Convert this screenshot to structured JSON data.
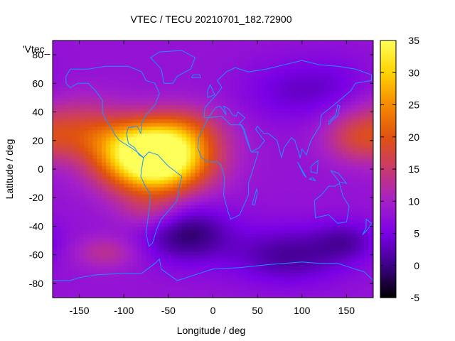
{
  "chart_data": {
    "type": "heatmap",
    "title": "VTEC / TECU 20210701_182.72900",
    "xlabel": "Longitude / deg",
    "ylabel": "Latitude / deg",
    "xlim": [
      -180,
      180
    ],
    "ylim": [
      -90,
      90
    ],
    "xticks": [
      -150,
      -100,
      -50,
      0,
      50,
      100,
      150
    ],
    "yticks": [
      -80,
      -60,
      -40,
      -20,
      0,
      20,
      40,
      60,
      80
    ],
    "colorbar": {
      "range": [
        -5,
        35
      ],
      "ticks": [
        -5,
        0,
        5,
        10,
        15,
        20,
        25,
        30,
        35
      ],
      "colormap": [
        "#000000",
        "#3d0087",
        "#7a00e6",
        "#a520c8",
        "#c83a6e",
        "#e0520f",
        "#f58a00",
        "#ffd300",
        "#ffff5a"
      ]
    },
    "legend_entry": "'Vtec_",
    "grid_resolution_deg": {
      "lon": 5,
      "lat": 2.5
    },
    "features": [
      {
        "lon": -65,
        "lat": 7,
        "vtec": 35,
        "sigma_lon": 40,
        "sigma_lat": 16
      },
      {
        "lon": -90,
        "lat": 20,
        "vtec": 6,
        "sigma_lon": 55,
        "sigma_lat": 12
      },
      {
        "lon": -155,
        "lat": 30,
        "vtec": 7,
        "sigma_lon": 40,
        "sigma_lat": 15
      },
      {
        "lon": -30,
        "lat": 30,
        "vtec": 5,
        "sigma_lon": 30,
        "sigma_lat": 12
      },
      {
        "lon": 160,
        "lat": 22,
        "vtec": 6,
        "sigma_lon": 25,
        "sigma_lat": 12
      },
      {
        "lon": -70,
        "lat": -30,
        "vtec": 5,
        "sigma_lon": 25,
        "sigma_lat": 10
      },
      {
        "lon": -120,
        "lat": -58,
        "vtec": 5,
        "sigma_lon": 25,
        "sigma_lat": 8
      },
      {
        "lon": -30,
        "lat": -45,
        "vtec": -9,
        "sigma_lon": 35,
        "sigma_lat": 14
      },
      {
        "lon": 85,
        "lat": -60,
        "vtec": -7,
        "sigma_lon": 45,
        "sigma_lat": 14
      },
      {
        "lon": 150,
        "lat": -50,
        "vtec": -5,
        "sigma_lon": 25,
        "sigma_lat": 10
      },
      {
        "lon": 90,
        "lat": 55,
        "vtec": -4,
        "sigma_lon": 40,
        "sigma_lat": 15
      },
      {
        "lon": 140,
        "lat": 60,
        "vtec": -2,
        "sigma_lon": 30,
        "sigma_lat": 15
      }
    ],
    "baseline_vtec": 8
  }
}
